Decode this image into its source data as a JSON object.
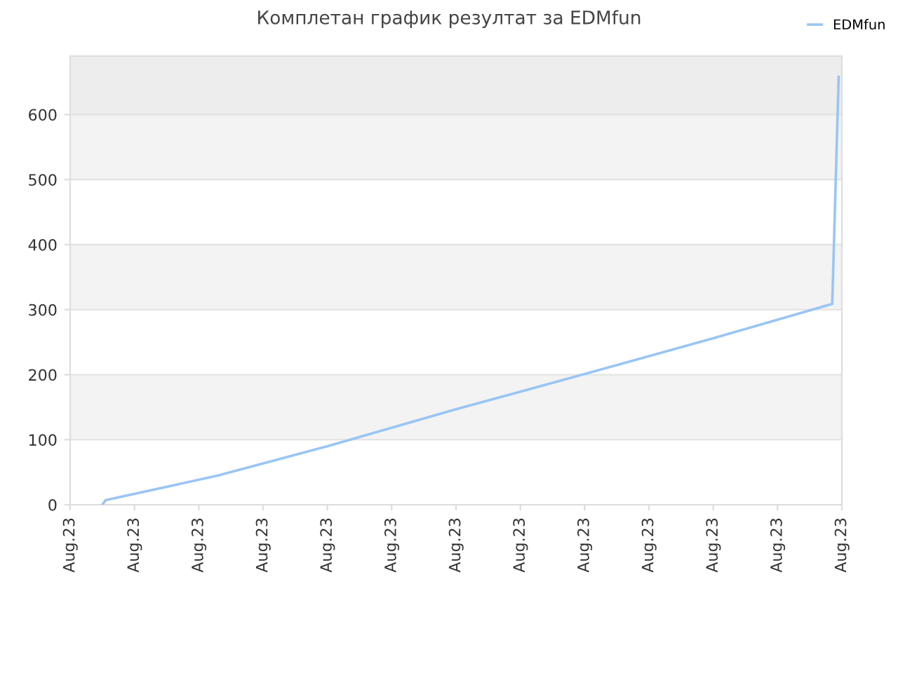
{
  "chart_data": {
    "type": "line",
    "title": "Комплетан график резултат за EDMfun",
    "categories": [
      "Aug.23",
      null,
      null,
      null,
      null,
      null,
      null,
      null,
      null,
      null,
      null,
      null,
      null,
      null,
      null,
      null,
      null,
      null,
      null,
      null,
      "Aug.23",
      null,
      null,
      null,
      null,
      null,
      null,
      null,
      null,
      null,
      null,
      null,
      null,
      null,
      null,
      null,
      null,
      null,
      null,
      null,
      "Aug.23",
      null,
      null,
      null,
      null,
      null,
      null,
      null,
      null,
      null,
      null,
      null,
      null,
      null,
      null,
      null,
      null,
      null,
      null,
      null,
      "Aug.23",
      null,
      null,
      null,
      null,
      null,
      null,
      null,
      null,
      null,
      null,
      null,
      null,
      null,
      null,
      null,
      null,
      null,
      null,
      null,
      "Aug.23",
      null,
      null,
      null,
      null,
      null,
      null,
      null,
      null,
      null,
      null,
      null,
      null,
      null,
      null,
      null,
      null,
      null,
      null,
      null,
      "Aug.23",
      null,
      null,
      null,
      null,
      null,
      null,
      null,
      null,
      null,
      null,
      null,
      null,
      null,
      null,
      null,
      null,
      null,
      null,
      null,
      "Aug.23",
      null,
      null,
      null,
      null,
      null,
      null,
      null,
      null,
      null,
      null,
      null,
      null,
      null,
      null,
      null,
      null,
      null,
      null,
      null,
      "Aug.23",
      null,
      null,
      null,
      null,
      null,
      null,
      null,
      null,
      null,
      null,
      null,
      null,
      null,
      null,
      null,
      null,
      null,
      null,
      null,
      "Aug.23",
      null,
      null,
      null,
      null,
      null,
      null,
      null,
      null,
      null,
      null,
      null,
      null,
      null,
      null,
      null,
      null,
      null,
      null,
      null,
      "Aug.23",
      null,
      null,
      null,
      null,
      null,
      null,
      null,
      null,
      null,
      null,
      null,
      null,
      null,
      null,
      null,
      null,
      null,
      null,
      null,
      "Aug.23",
      null,
      null,
      null,
      null,
      null,
      null,
      null,
      null,
      null,
      null,
      null,
      null,
      null,
      null,
      null,
      null,
      null,
      null,
      null,
      "Aug.23",
      null,
      null,
      null,
      null,
      null,
      null,
      null,
      null,
      null,
      null,
      null,
      null,
      null,
      null,
      null,
      null,
      null,
      null,
      null,
      "Aug.23"
    ],
    "series": [
      {
        "name": "EDMfun",
        "color": "#99c5f5",
        "values": [
          null,
          null,
          null,
          null,
          null,
          null,
          null,
          null,
          null,
          null,
          0,
          7,
          null,
          null,
          null,
          null,
          null,
          null,
          null,
          null,
          null,
          null,
          null,
          null,
          null,
          null,
          null,
          null,
          null,
          null,
          null,
          null,
          null,
          null,
          null,
          null,
          null,
          null,
          null,
          null,
          null,
          null,
          null,
          null,
          null,
          null,
          45,
          null,
          null,
          null,
          null,
          null,
          null,
          null,
          null,
          null,
          null,
          null,
          null,
          null,
          null,
          null,
          null,
          null,
          null,
          null,
          null,
          null,
          null,
          null,
          null,
          null,
          null,
          null,
          null,
          null,
          null,
          null,
          null,
          null,
          90,
          null,
          null,
          null,
          null,
          null,
          null,
          null,
          null,
          null,
          null,
          null,
          null,
          null,
          null,
          null,
          null,
          null,
          null,
          null,
          null,
          null,
          null,
          null,
          null,
          null,
          null,
          null,
          null,
          null,
          null,
          null,
          null,
          null,
          null,
          null,
          null,
          null,
          null,
          null,
          147,
          null,
          null,
          null,
          null,
          null,
          null,
          null,
          null,
          null,
          null,
          null,
          null,
          null,
          null,
          null,
          null,
          null,
          null,
          null,
          null,
          null,
          null,
          null,
          null,
          null,
          null,
          null,
          null,
          null,
          null,
          null,
          null,
          null,
          null,
          null,
          null,
          null,
          null,
          null,
          201,
          null,
          null,
          null,
          null,
          null,
          null,
          null,
          null,
          null,
          null,
          null,
          null,
          null,
          null,
          null,
          null,
          null,
          null,
          null,
          null,
          null,
          null,
          null,
          null,
          null,
          null,
          null,
          null,
          null,
          null,
          null,
          null,
          null,
          null,
          null,
          null,
          null,
          null,
          null,
          256,
          null,
          null,
          null,
          null,
          null,
          null,
          null,
          null,
          null,
          null,
          null,
          null,
          null,
          null,
          null,
          null,
          null,
          null,
          null,
          null,
          null,
          null,
          null,
          null,
          null,
          null,
          null,
          null,
          null,
          null,
          null,
          null,
          null,
          null,
          null,
          null,
          309,
          483,
          658,
          null
        ]
      }
    ],
    "ylim": [
      0,
      690
    ],
    "yticks": [
      0,
      100,
      200,
      300,
      400,
      500,
      600
    ],
    "bands": [
      {
        "axis": "y",
        "from": 100,
        "to": 200,
        "color": "#f3f3f3"
      },
      {
        "axis": "y",
        "from": 300,
        "to": 400,
        "color": "#f3f3f3"
      },
      {
        "axis": "y",
        "from": 500,
        "to": 600,
        "color": "#f3f3f3"
      },
      {
        "axis": "y",
        "from": 600,
        "to": 690,
        "color": "#ededed"
      }
    ],
    "grid": "y",
    "legend": "top right",
    "marker": "none",
    "line_style": "solid"
  }
}
